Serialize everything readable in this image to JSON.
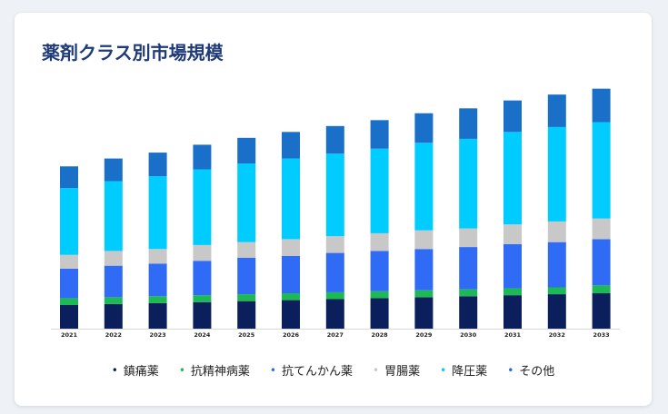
{
  "card": {
    "title": "薬剤クラス別市場規模"
  },
  "chart_data": {
    "type": "bar",
    "stacked": true,
    "categories": [
      "2021",
      "2022",
      "2023",
      "2024",
      "2025",
      "2026",
      "2027",
      "2028",
      "2029",
      "2030",
      "2031",
      "2032",
      "2033"
    ],
    "series": [
      {
        "name": "鎮痛薬",
        "color": "#0a1f5c",
        "values": [
          24,
          25,
          26,
          27,
          28,
          29,
          30,
          31,
          32,
          33,
          34,
          35,
          36
        ]
      },
      {
        "name": "抗精神病薬",
        "color": "#1db954",
        "values": [
          7,
          7,
          7,
          7,
          7,
          7,
          7,
          7,
          7,
          7,
          7,
          7,
          8
        ]
      },
      {
        "name": "抗てんかん薬",
        "color": "#2f6bf5",
        "values": [
          30,
          32,
          33,
          35,
          37,
          38,
          40,
          41,
          42,
          43,
          45,
          46,
          47
        ]
      },
      {
        "name": "胃腸薬",
        "color": "#c8c8c8",
        "values": [
          14,
          15,
          15,
          16,
          16,
          17,
          17,
          18,
          19,
          19,
          20,
          21,
          21
        ]
      },
      {
        "name": "降圧薬",
        "color": "#00ccff",
        "values": [
          68,
          71,
          74,
          77,
          80,
          82,
          84,
          86,
          89,
          91,
          94,
          96,
          98
        ]
      },
      {
        "name": "その他",
        "color": "#1a6fc9",
        "values": [
          22,
          23,
          24,
          25,
          26,
          27,
          28,
          29,
          30,
          31,
          32,
          33,
          34
        ]
      }
    ],
    "ylim": [
      0,
      240
    ],
    "grid": false,
    "legend_position": "bottom"
  }
}
